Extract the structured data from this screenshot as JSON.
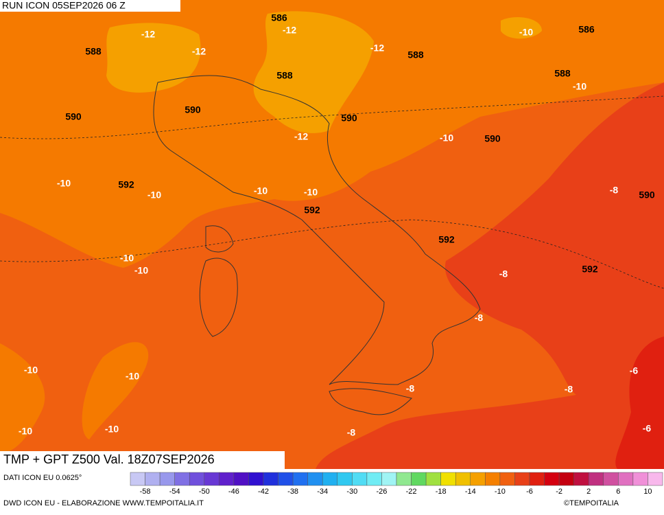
{
  "header": {
    "run": "RUN ICON 05SEP2026 06 Z"
  },
  "map": {
    "title": "TMP + GPT Z500 Val. 18Z07SEP2026",
    "labels": [
      "586",
      "-12",
      "-10",
      "586",
      "588",
      "-12",
      "-12",
      "-12",
      "588",
      "588",
      "588",
      "-10",
      "590",
      "590",
      "590",
      "-12",
      "-10",
      "590",
      "-10",
      "592",
      "-10",
      "-10",
      "-10",
      "592",
      "-8",
      "590",
      "592",
      "592",
      "-10",
      "-10",
      "-8",
      "-8",
      "-10",
      "-10",
      "-6",
      "-8",
      "-8",
      "-10",
      "-10",
      "-8",
      "-6"
    ]
  },
  "colorbar": {
    "source": "DATI ICON EU 0.0625°",
    "colors": [
      "#c8c8f4",
      "#b0b0f0",
      "#9898ec",
      "#8070e4",
      "#7050dc",
      "#6838d4",
      "#6020cc",
      "#5010c4",
      "#3010d0",
      "#2030dc",
      "#2050e8",
      "#2070f0",
      "#2090f0",
      "#20b0f0",
      "#30c8f0",
      "#50dcf4",
      "#70ecf4",
      "#a0f4f4",
      "#90e890",
      "#60d860",
      "#a0e040",
      "#f0e000",
      "#f0c000",
      "#f5a000",
      "#f58000",
      "#f06010",
      "#e84018",
      "#e02010",
      "#d40010",
      "#c40010",
      "#c01040",
      "#c03080",
      "#d050a0",
      "#e070c0",
      "#f090d8",
      "#f8b8ec"
    ],
    "ticks": [
      -58,
      -54,
      -50,
      -46,
      -42,
      -38,
      -34,
      -30,
      -26,
      -22,
      -18,
      -14,
      -10,
      -6,
      -2,
      2,
      6,
      10
    ]
  },
  "footer": {
    "credit": "DWD ICON EU - ELABORAZIONE WWW.TEMPOITALIA.IT",
    "brand": "©TEMPOITALIA"
  }
}
